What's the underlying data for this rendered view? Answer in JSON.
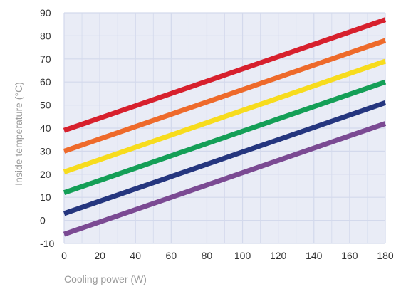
{
  "chart_data": {
    "type": "line",
    "xlabel": "Cooling power (W)",
    "ylabel": "Inside temperature (°C)",
    "xlim": [
      0,
      180
    ],
    "ylim": [
      -10,
      90
    ],
    "x_ticks": [
      "0",
      "20",
      "40",
      "60",
      "80",
      "100",
      "120",
      "140",
      "160",
      "180"
    ],
    "y_ticks": [
      "90",
      "80",
      "70",
      "60",
      "50",
      "40",
      "30",
      "20",
      "10",
      "0",
      "-10"
    ],
    "grid": true,
    "legend": "none",
    "plot_background": "#e9ecf6",
    "grid_color": "#d3d9ec",
    "series": [
      {
        "color": "#d7202d",
        "x": [
          0,
          180
        ],
        "y": [
          39,
          87
        ]
      },
      {
        "color": "#ee6a2b",
        "x": [
          0,
          180
        ],
        "y": [
          30,
          78
        ]
      },
      {
        "color": "#f7dc1d",
        "x": [
          0,
          180
        ],
        "y": [
          21,
          69
        ]
      },
      {
        "color": "#149f57",
        "x": [
          0,
          180
        ],
        "y": [
          12,
          60
        ]
      },
      {
        "color": "#25367f",
        "x": [
          0,
          180
        ],
        "y": [
          3,
          51
        ]
      },
      {
        "color": "#7b4a93",
        "x": [
          0,
          180
        ],
        "y": [
          -6,
          42
        ]
      }
    ]
  }
}
